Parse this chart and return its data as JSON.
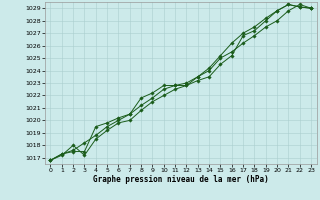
{
  "xlabel": "Graphe pression niveau de la mer (hPa)",
  "ylim": [
    1016.5,
    1029.5
  ],
  "xlim": [
    -0.5,
    23.5
  ],
  "yticks": [
    1017,
    1018,
    1019,
    1020,
    1021,
    1022,
    1023,
    1024,
    1025,
    1026,
    1027,
    1028,
    1029
  ],
  "xticks": [
    0,
    1,
    2,
    3,
    4,
    5,
    6,
    7,
    8,
    9,
    10,
    11,
    12,
    13,
    14,
    15,
    16,
    17,
    18,
    19,
    20,
    21,
    22,
    23
  ],
  "bg_color": "#cceaea",
  "grid_color": "#aacece",
  "line_color": "#1a5c1a",
  "series": [
    [
      1016.8,
      1017.3,
      1017.5,
      1017.5,
      1019.5,
      1019.8,
      1020.2,
      1020.5,
      1021.2,
      1021.8,
      1022.5,
      1022.8,
      1023.0,
      1023.5,
      1024.0,
      1025.0,
      1025.5,
      1026.2,
      1026.8,
      1027.5,
      1028.0,
      1028.8,
      1029.3,
      1029.0
    ],
    [
      1016.8,
      1017.3,
      1017.6,
      1018.2,
      1018.8,
      1019.5,
      1020.0,
      1020.5,
      1021.8,
      1022.2,
      1022.8,
      1022.8,
      1022.8,
      1023.5,
      1024.2,
      1025.2,
      1026.2,
      1027.0,
      1027.5,
      1028.2,
      1028.8,
      1029.3,
      1029.1,
      1029.0
    ],
    [
      1016.8,
      1017.2,
      1018.0,
      1017.2,
      1018.5,
      1019.2,
      1019.8,
      1020.0,
      1020.8,
      1021.5,
      1022.0,
      1022.5,
      1022.8,
      1023.2,
      1023.5,
      1024.5,
      1025.2,
      1026.8,
      1027.2,
      1028.0,
      1028.8,
      1029.3,
      1029.1,
      1029.0
    ]
  ],
  "label_fontsize": 4.5,
  "xlabel_fontsize": 5.5,
  "marker_size": 1.8,
  "line_width": 0.7
}
